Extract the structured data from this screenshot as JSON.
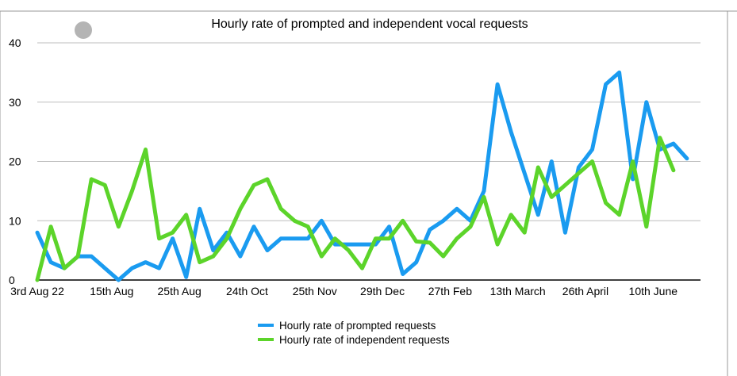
{
  "chart_data": {
    "type": "line",
    "title": "Hourly rate of prompted and independent vocal requests",
    "xlabel": "",
    "ylabel": "",
    "ylim": [
      0,
      40
    ],
    "yticks": [
      "0",
      "10",
      "20",
      "30",
      "40"
    ],
    "grid": true,
    "legend_position": "bottom-center",
    "x_tick_labels": [
      {
        "label": "3rd Aug 22",
        "index": 0
      },
      {
        "label": "15th Aug",
        "index": 5.5
      },
      {
        "label": "25th Aug",
        "index": 10.5
      },
      {
        "label": "24th Oct",
        "index": 15.5
      },
      {
        "label": "25th Nov",
        "index": 20.5
      },
      {
        "label": "29th Dec",
        "index": 25.5
      },
      {
        "label": "27th Feb",
        "index": 30.5
      },
      {
        "label": "13th March",
        "index": 35.5
      },
      {
        "label": "26th April",
        "index": 40.5
      },
      {
        "label": "10th June",
        "index": 45.5
      }
    ],
    "series": [
      {
        "name": "Hourly rate of prompted requests",
        "color": "#1a9bf0",
        "values": [
          8,
          3,
          2,
          4,
          4,
          2,
          0,
          2,
          3,
          2,
          7,
          0.5,
          12,
          5,
          8,
          4,
          9,
          5,
          7,
          7,
          7,
          10,
          6,
          6,
          6,
          6,
          9,
          1,
          3,
          8.5,
          10,
          12,
          10,
          15,
          33,
          25,
          18,
          11,
          20,
          8,
          19,
          22,
          33,
          35,
          17,
          30,
          22,
          23,
          20.5
        ]
      },
      {
        "name": "Hourly rate of independent requests",
        "color": "#5cd42a",
        "values": [
          0,
          9,
          2,
          4,
          17,
          16,
          9,
          15,
          22,
          7,
          8,
          11,
          3,
          4,
          7,
          12,
          16,
          17,
          12,
          10,
          9,
          4,
          7,
          5,
          2,
          7,
          7,
          10,
          6.5,
          6.3,
          4,
          7,
          9,
          14,
          6,
          11,
          8,
          19,
          14,
          16,
          18,
          20,
          13,
          11,
          20,
          9,
          24,
          18.5
        ]
      }
    ]
  }
}
